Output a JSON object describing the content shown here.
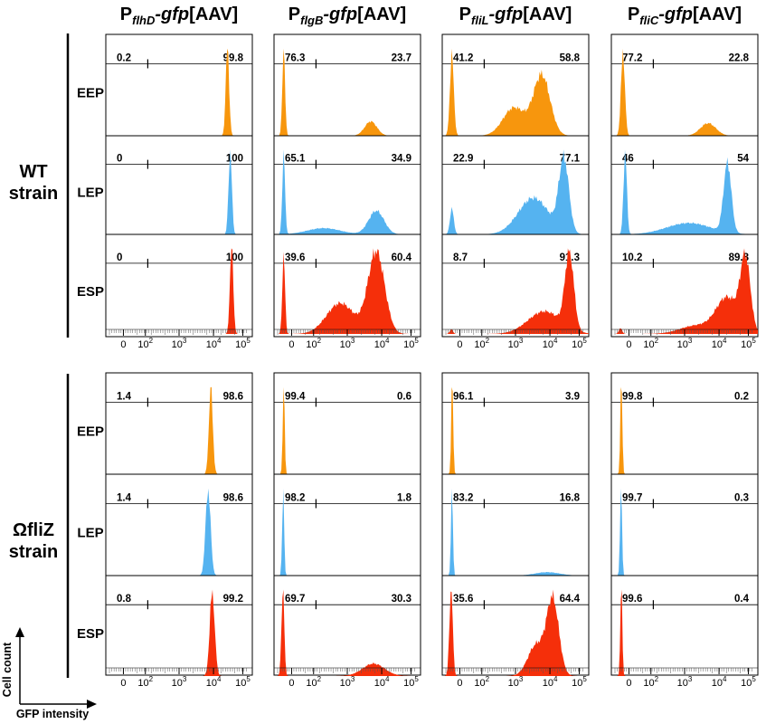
{
  "chart_data": {
    "type": "area",
    "description_columns": "flow cytometry GFP histograms",
    "columns": [
      {
        "prefix": "P",
        "sub": "flhD",
        "suffix": "-gfp",
        "tail": "[AAV]"
      },
      {
        "prefix": "P",
        "sub": "flgB",
        "suffix": "-gfp",
        "tail": "[AAV]"
      },
      {
        "prefix": "P",
        "sub": "fliL",
        "suffix": "-gfp",
        "tail": "[AAV]"
      },
      {
        "prefix": "P",
        "sub": "fliC",
        "suffix": "-gfp",
        "tail": "[AAV]"
      }
    ],
    "strains": [
      {
        "line1": "WT",
        "line2": "strain"
      },
      {
        "line1": "ΩfliZ",
        "line2": "strain"
      }
    ],
    "phases": [
      "EEP",
      "LEP",
      "ESP"
    ],
    "phase_colors": {
      "EEP": "#f7960d",
      "LEP": "#55b3f0",
      "ESP": "#f52f0a"
    },
    "x_axis": {
      "label": "GFP intensity",
      "scale": "biexponential",
      "ticks": [
        {
          "base": "0",
          "exp": ""
        },
        {
          "base": "10",
          "exp": "2"
        },
        {
          "base": "10",
          "exp": "3"
        },
        {
          "base": "10",
          "exp": "4"
        },
        {
          "base": "10",
          "exp": "5"
        }
      ]
    },
    "y_axis": {
      "label": "Cell count"
    },
    "gate_percentages": [
      [
        [
          {
            "l": "0.2",
            "r": "99.8"
          },
          {
            "l": "76.3",
            "r": "23.7"
          },
          {
            "l": "41.2",
            "r": "58.8"
          },
          {
            "l": "77.2",
            "r": "22.8"
          }
        ],
        [
          {
            "l": "0",
            "r": "100"
          },
          {
            "l": "65.1",
            "r": "34.9"
          },
          {
            "l": "22.9",
            "r": "77.1"
          },
          {
            "l": "46",
            "r": "54"
          }
        ],
        [
          {
            "l": "0",
            "r": "100"
          },
          {
            "l": "39.6",
            "r": "60.4"
          },
          {
            "l": "8.7",
            "r": "91.3"
          },
          {
            "l": "10.2",
            "r": "89.8"
          }
        ]
      ],
      [
        [
          {
            "l": "1.4",
            "r": "98.6"
          },
          {
            "l": "99.4",
            "r": "0.6"
          },
          {
            "l": "96.1",
            "r": "3.9"
          },
          {
            "l": "99.8",
            "r": "0.2"
          }
        ],
        [
          {
            "l": "1.4",
            "r": "98.6"
          },
          {
            "l": "98.2",
            "r": "1.8"
          },
          {
            "l": "83.2",
            "r": "16.8"
          },
          {
            "l": "99.7",
            "r": "0.3"
          }
        ],
        [
          {
            "l": "0.8",
            "r": "99.2"
          },
          {
            "l": "69.7",
            "r": "30.3"
          },
          {
            "l": "35.6",
            "r": "64.4"
          },
          {
            "l": "99.6",
            "r": "0.4"
          }
        ]
      ]
    ],
    "gate_position": 0.2,
    "histograms": [
      [
        [
          [
            [
              4.1,
              1.0,
              0.06
            ]
          ],
          [
            [
              0.05,
              1.0,
              0.05
            ],
            [
              3.2,
              0.17,
              0.22
            ]
          ],
          [
            [
              0.05,
              1.0,
              0.07
            ],
            [
              3.3,
              0.75,
              0.3
            ],
            [
              2.3,
              0.35,
              0.4
            ]
          ],
          [
            [
              0.12,
              1.0,
              0.07
            ],
            [
              3.2,
              0.15,
              0.28
            ]
          ]
        ],
        [
          [
            [
              4.2,
              1.0,
              0.06
            ]
          ],
          [
            [
              0.05,
              1.0,
              0.05
            ],
            [
              3.4,
              0.3,
              0.28
            ],
            [
              1.5,
              0.08,
              0.6
            ]
          ],
          [
            [
              0.05,
              0.35,
              0.07
            ],
            [
              4.1,
              1.0,
              0.18
            ],
            [
              3.0,
              0.5,
              0.55
            ]
          ],
          [
            [
              0.2,
              1.0,
              0.06
            ],
            [
              3.9,
              0.85,
              0.14
            ],
            [
              2.5,
              0.14,
              0.8
            ]
          ]
        ],
        [
          [
            [
              4.25,
              1.0,
              0.06
            ]
          ],
          [
            [
              0.05,
              0.75,
              0.05
            ],
            [
              3.4,
              0.8,
              0.3
            ],
            [
              2.1,
              0.3,
              0.5
            ]
          ],
          [
            [
              0.03,
              0.06,
              0.06
            ],
            [
              4.3,
              1.0,
              0.16
            ],
            [
              3.4,
              0.3,
              0.6
            ]
          ],
          [
            [
              0.03,
              0.08,
              0.06
            ],
            [
              4.55,
              1.0,
              0.18
            ],
            [
              3.9,
              0.5,
              0.4
            ],
            [
              2.8,
              0.12,
              0.6
            ]
          ]
        ]
      ],
      [
        [
          [
            [
              3.5,
              1.0,
              0.07
            ]
          ],
          [
            [
              0.05,
              1.0,
              0.035
            ]
          ],
          [
            [
              0.06,
              1.0,
              0.035
            ]
          ],
          [
            [
              0.06,
              1.0,
              0.035
            ]
          ]
        ],
        [
          [
            [
              3.4,
              1.0,
              0.09
            ]
          ],
          [
            [
              0.03,
              1.0,
              0.035
            ]
          ],
          [
            [
              0.05,
              1.0,
              0.035
            ],
            [
              3.5,
              0.04,
              0.45
            ]
          ],
          [
            [
              0.05,
              1.0,
              0.035
            ]
          ]
        ],
        [
          [
            [
              3.55,
              1.0,
              0.09
            ]
          ],
          [
            [
              0.02,
              1.0,
              0.05
            ],
            [
              3.3,
              0.14,
              0.4
            ]
          ],
          [
            [
              0.02,
              1.0,
              0.06
            ],
            [
              3.7,
              0.85,
              0.22
            ],
            [
              3.1,
              0.35,
              0.3
            ]
          ],
          [
            [
              0.06,
              1.0,
              0.035
            ]
          ]
        ]
      ]
    ],
    "notes": "histogram components are [x_pos_in_decades, relative_height, width_in_decades]; x_pos 0 = value 0, 1 = 10^1 ... 5 = 10^5"
  }
}
